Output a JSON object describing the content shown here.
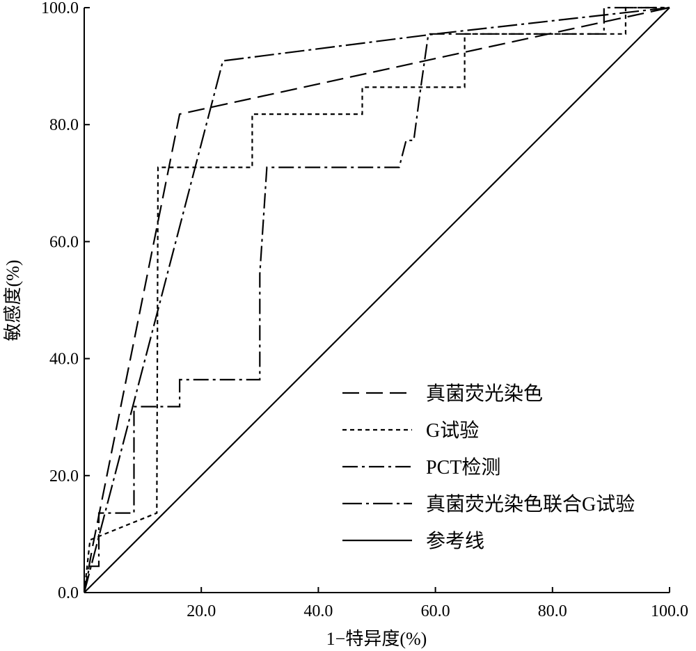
{
  "chart_data": {
    "type": "line",
    "title": "",
    "xlabel": "1−特异度(%)",
    "ylabel": "敏感度(%)",
    "xlim": [
      0,
      100
    ],
    "ylim": [
      0,
      100
    ],
    "x_ticks": [
      "20.0",
      "40.0",
      "60.0",
      "80.0",
      "100.0"
    ],
    "y_ticks": [
      "0.0",
      "20.0",
      "40.0",
      "60.0",
      "80.0",
      "100.0"
    ],
    "grid": false,
    "legend_position": "bottom-right",
    "series": [
      {
        "name": "真菌荧光染色",
        "style": "long-dash",
        "points": [
          [
            0,
            0
          ],
          [
            1.5,
            8.2
          ],
          [
            16.3,
            81.8
          ],
          [
            100,
            100
          ]
        ]
      },
      {
        "name": "G试验",
        "style": "short-dash",
        "points": [
          [
            0,
            0
          ],
          [
            1,
            9
          ],
          [
            12.4,
            13.6
          ],
          [
            12.6,
            72.7
          ],
          [
            28.7,
            72.7
          ],
          [
            28.7,
            81.8
          ],
          [
            47.5,
            81.8
          ],
          [
            47.5,
            86.4
          ],
          [
            65,
            86.4
          ],
          [
            65,
            95.5
          ],
          [
            92.5,
            95.5
          ],
          [
            92.5,
            100
          ],
          [
            100,
            100
          ]
        ]
      },
      {
        "name": "PCT检测",
        "style": "dash-dot",
        "points": [
          [
            0,
            0
          ],
          [
            0.9,
            4.5
          ],
          [
            2.5,
            4.5
          ],
          [
            2.5,
            13.6
          ],
          [
            8.5,
            13.6
          ],
          [
            8.5,
            31.8
          ],
          [
            16.3,
            31.8
          ],
          [
            16.3,
            36.4
          ],
          [
            30,
            36.4
          ],
          [
            30,
            54.5
          ],
          [
            31.2,
            72.7
          ],
          [
            53.8,
            72.7
          ],
          [
            55,
            77.3
          ],
          [
            56.3,
            77.3
          ],
          [
            57.5,
            86.4
          ],
          [
            58.8,
            95.5
          ],
          [
            88.8,
            95.5
          ],
          [
            88.8,
            100
          ],
          [
            100,
            100
          ]
        ]
      },
      {
        "name": "真菌荧光染色联合G试验",
        "style": "long-dash-dot",
        "points": [
          [
            0,
            0
          ],
          [
            23.7,
            90.9
          ],
          [
            60,
            95.5
          ],
          [
            100,
            100
          ]
        ]
      },
      {
        "name": "参考线",
        "style": "solid",
        "points": [
          [
            0,
            0
          ],
          [
            100,
            100
          ]
        ]
      }
    ]
  }
}
